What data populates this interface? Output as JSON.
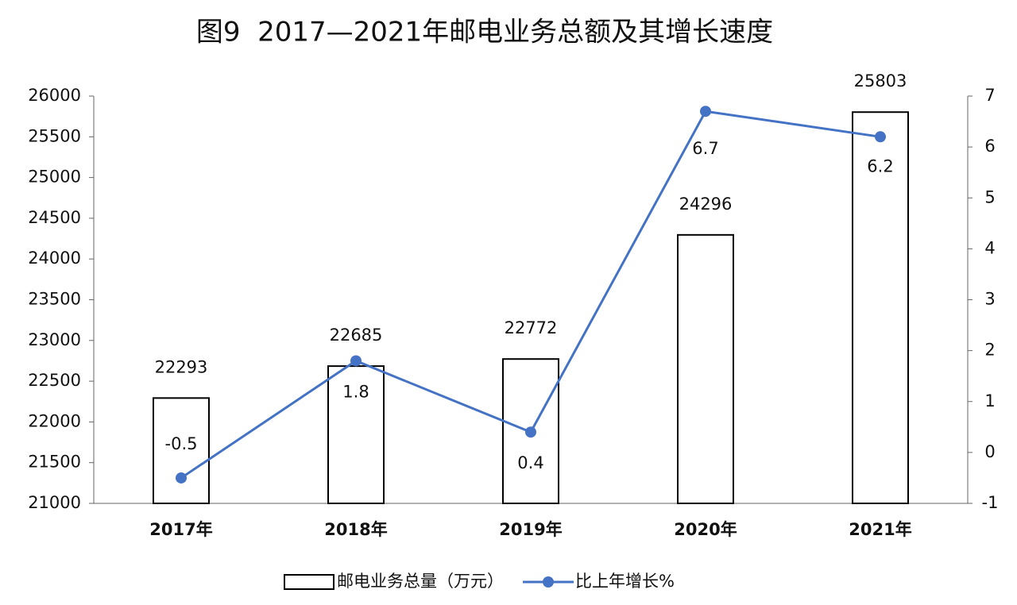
{
  "chart_data": {
    "type": "bar",
    "title": "图9  2017—2021年邮电业务总额及其增长速度",
    "categories": [
      "2017年",
      "2018年",
      "2019年",
      "2020年",
      "2021年"
    ],
    "series": [
      {
        "name": "邮电业务总量（万元）",
        "type": "bar",
        "color": "#ffffff",
        "values": [
          22293,
          22685,
          22772,
          24296,
          25803
        ]
      },
      {
        "name": "比上年增长%",
        "type": "line",
        "color": "#4472c4",
        "axis": "y2",
        "values": [
          -0.5,
          1.8,
          0.4,
          6.7,
          6.2
        ]
      }
    ],
    "ylim": [
      21000,
      26000
    ],
    "yticks": [
      21000,
      21500,
      22000,
      22500,
      23000,
      23500,
      24000,
      24500,
      25000,
      25500,
      26000
    ],
    "y2lim": [
      -1,
      7
    ],
    "y2ticks": [
      -1,
      0,
      1,
      2,
      3,
      4,
      5,
      6,
      7
    ],
    "grid": false,
    "legend": "bottom"
  }
}
